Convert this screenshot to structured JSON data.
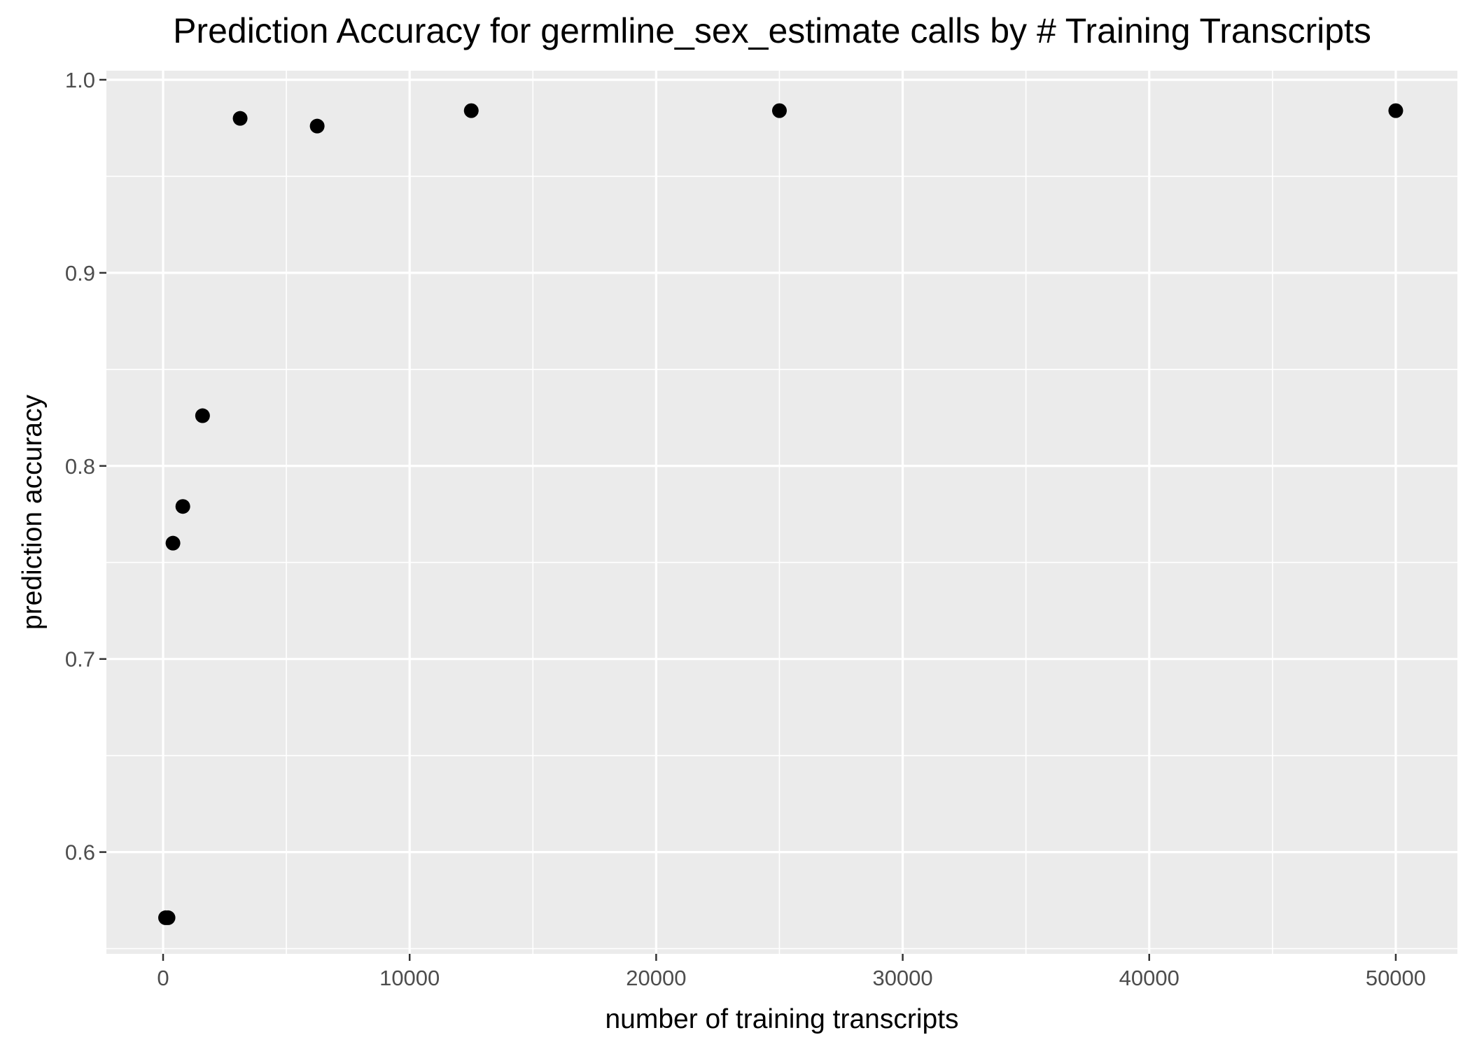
{
  "chart_data": {
    "type": "scatter",
    "title": "Prediction Accuracy for germline_sex_estimate calls by # Training Transcripts",
    "xlabel": "number of training transcripts",
    "ylabel": "prediction accuracy",
    "xlim": [
      -2300,
      52500
    ],
    "ylim": [
      0.5473,
      1.0047
    ],
    "x_ticks": [
      0,
      10000,
      20000,
      30000,
      40000,
      50000
    ],
    "x_tick_labels": [
      "0",
      "10000",
      "20000",
      "30000",
      "40000",
      "50000"
    ],
    "y_ticks": [
      0.6,
      0.7,
      0.8,
      0.9,
      1.0
    ],
    "y_tick_labels": [
      "0.6",
      "0.7",
      "0.8",
      "0.9",
      "1.0"
    ],
    "grid": true,
    "legend": "none",
    "point_color": "#000000",
    "panel_color": "#ebebeb",
    "points": [
      {
        "x": 100,
        "y": 0.566
      },
      {
        "x": 200,
        "y": 0.566
      },
      {
        "x": 400,
        "y": 0.76
      },
      {
        "x": 800,
        "y": 0.779
      },
      {
        "x": 1600,
        "y": 0.826
      },
      {
        "x": 3125,
        "y": 0.98
      },
      {
        "x": 6250,
        "y": 0.976
      },
      {
        "x": 12500,
        "y": 0.984
      },
      {
        "x": 25000,
        "y": 0.984
      },
      {
        "x": 50000,
        "y": 0.984
      }
    ]
  }
}
